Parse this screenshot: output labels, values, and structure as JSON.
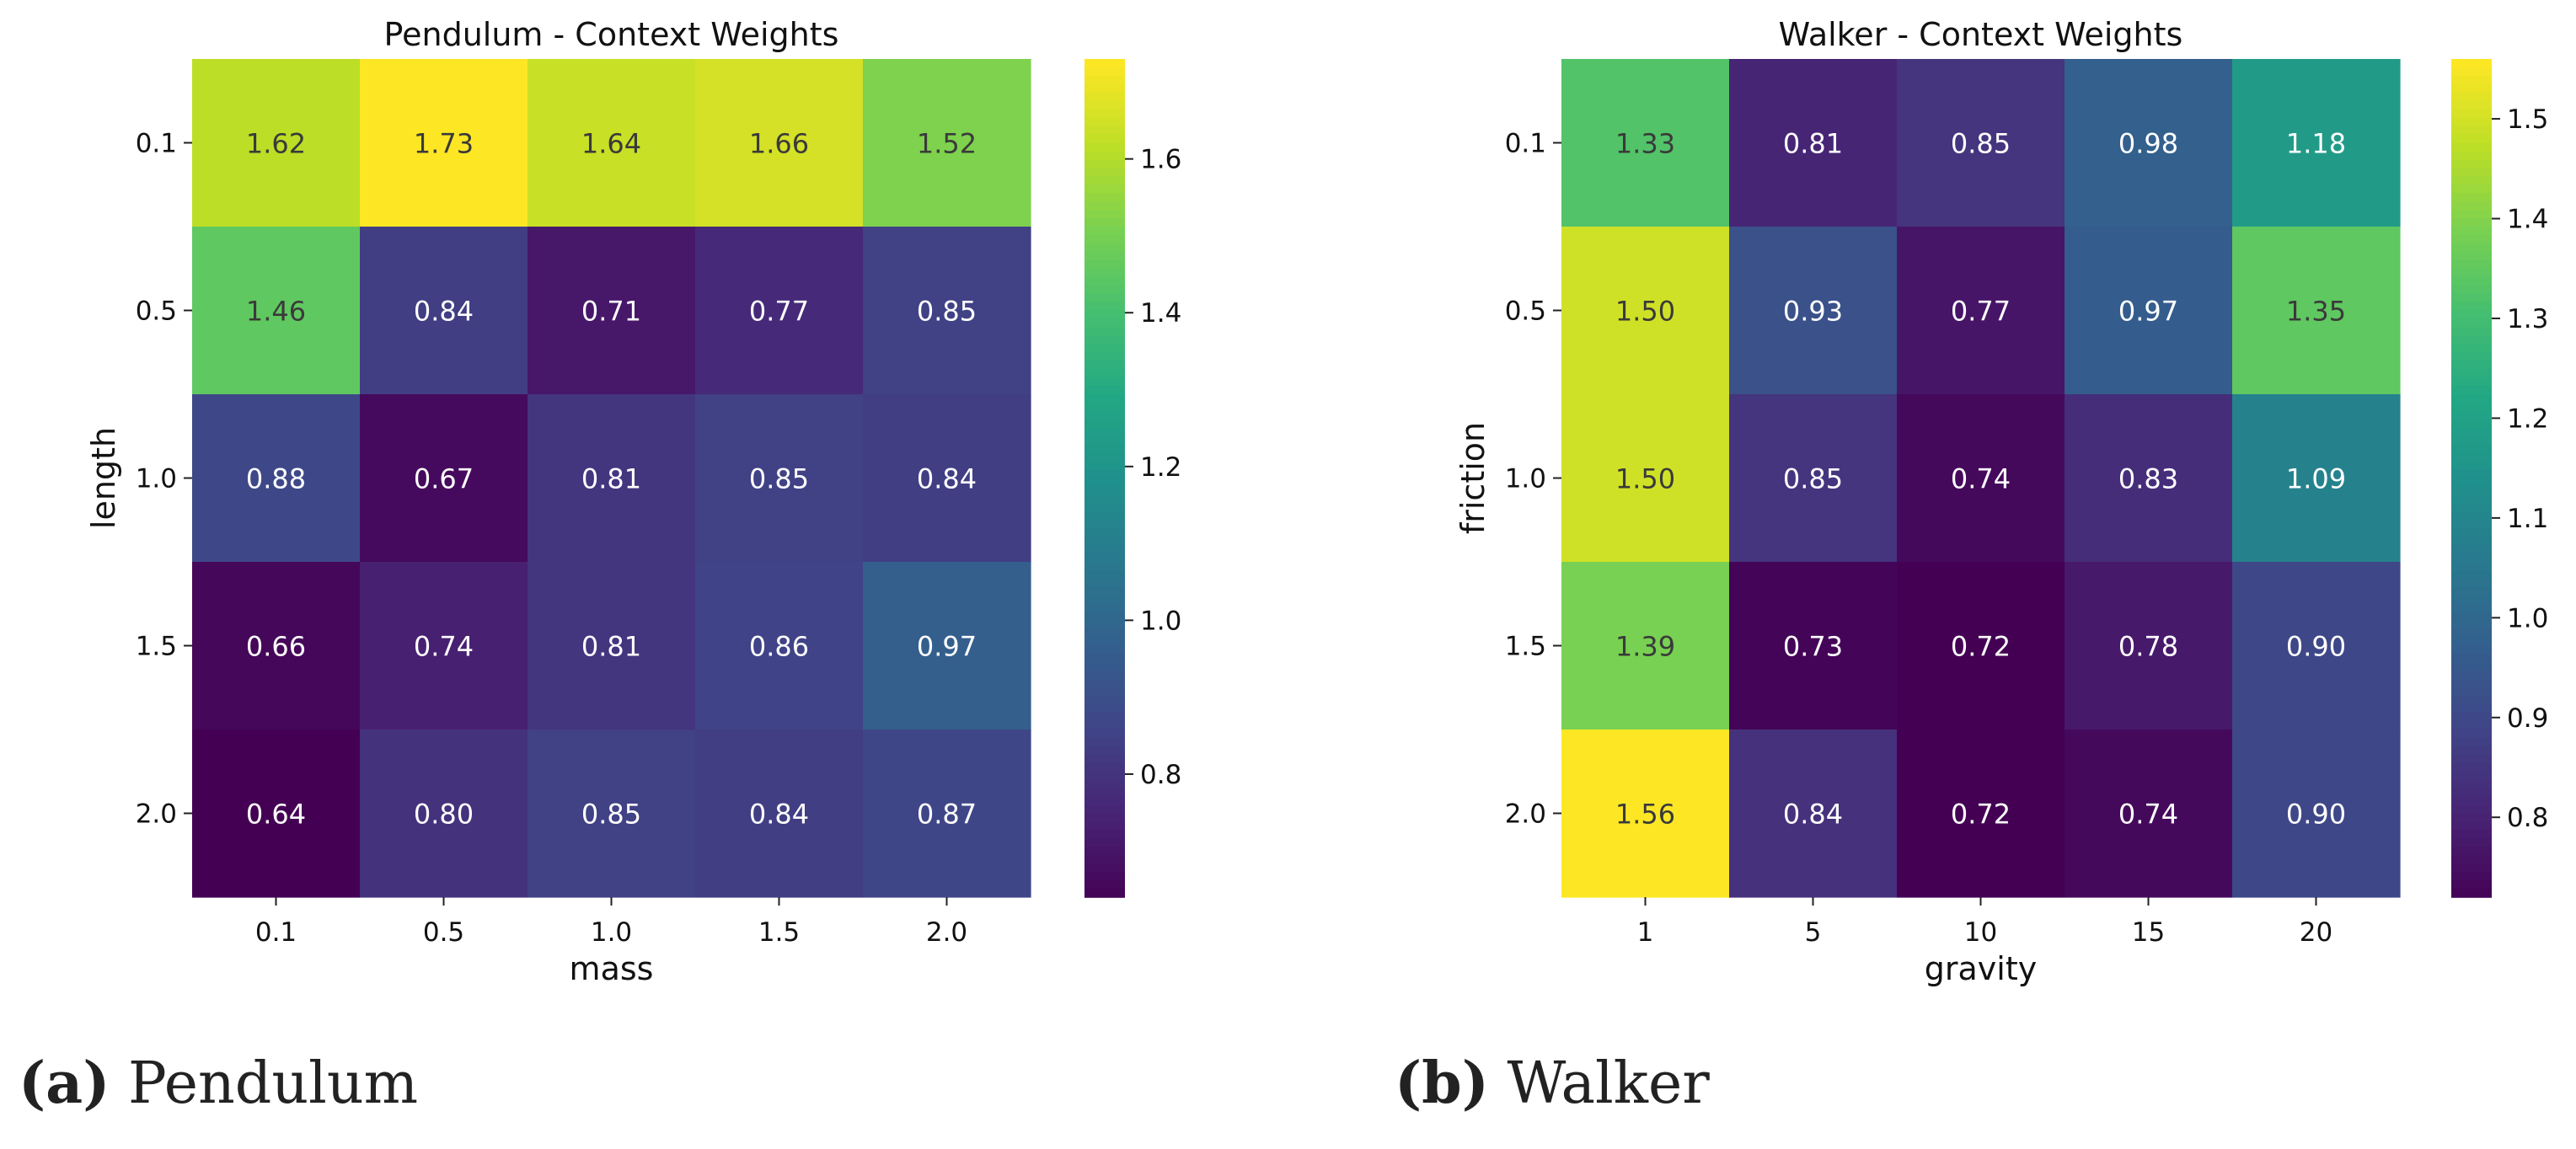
{
  "chart_data": [
    {
      "type": "heatmap",
      "title": "Pendulum - Context Weights",
      "xlabel": "mass",
      "ylabel": "length",
      "x_categories": [
        "0.1",
        "0.5",
        "1.0",
        "1.5",
        "2.0"
      ],
      "y_categories": [
        "0.1",
        "0.5",
        "1.0",
        "1.5",
        "2.0"
      ],
      "values": [
        [
          1.62,
          1.73,
          1.64,
          1.66,
          1.52
        ],
        [
          1.46,
          0.84,
          0.71,
          0.77,
          0.85
        ],
        [
          0.88,
          0.67,
          0.81,
          0.85,
          0.84
        ],
        [
          0.66,
          0.74,
          0.81,
          0.86,
          0.97
        ],
        [
          0.64,
          0.8,
          0.85,
          0.84,
          0.87
        ]
      ],
      "colormap": "viridis",
      "vmin": 0.64,
      "vmax": 1.73,
      "colorbar_ticks": [
        "0.8",
        "1.0",
        "1.2",
        "1.4",
        "1.6"
      ]
    },
    {
      "type": "heatmap",
      "title": "Walker - Context Weights",
      "xlabel": "gravity",
      "ylabel": "friction",
      "x_categories": [
        "1",
        "5",
        "10",
        "15",
        "20"
      ],
      "y_categories": [
        "0.1",
        "0.5",
        "1.0",
        "1.5",
        "2.0"
      ],
      "values": [
        [
          1.33,
          0.81,
          0.85,
          0.98,
          1.18
        ],
        [
          1.5,
          0.93,
          0.77,
          0.97,
          1.35
        ],
        [
          1.5,
          0.85,
          0.74,
          0.83,
          1.09
        ],
        [
          1.39,
          0.73,
          0.72,
          0.78,
          0.9
        ],
        [
          1.56,
          0.84,
          0.72,
          0.74,
          0.9
        ]
      ],
      "colormap": "viridis",
      "vmin": 0.72,
      "vmax": 1.56,
      "colorbar_ticks": [
        "0.8",
        "0.9",
        "1.0",
        "1.1",
        "1.2",
        "1.3",
        "1.4",
        "1.5"
      ]
    }
  ],
  "captions": [
    {
      "label": "(a)",
      "text": "Pendulum"
    },
    {
      "label": "(b)",
      "text": "Walker"
    }
  ]
}
